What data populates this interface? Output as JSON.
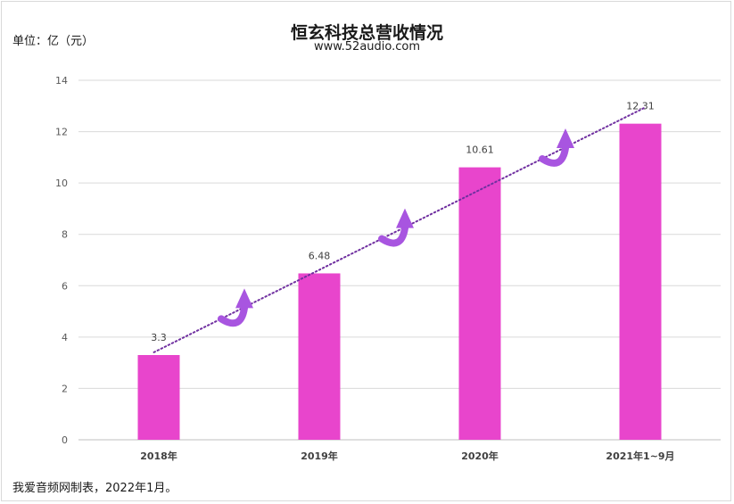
{
  "chart_data": {
    "type": "bar",
    "title": "恒玄科技总营收情况",
    "subtitle": "www.52audio.com",
    "unit_label": "单位：亿（元）",
    "footer": "我爱音频网制表，2022年1月。",
    "categories": [
      "2018年",
      "2019年",
      "2020年",
      "2021年1~9月"
    ],
    "values": [
      3.3,
      6.48,
      10.61,
      12.31
    ],
    "data_labels": [
      "3.3",
      "6.48",
      "10.61",
      "12.31"
    ],
    "ylim": [
      0,
      14
    ],
    "yticks": [
      0,
      2,
      4,
      6,
      8,
      10,
      12,
      14
    ],
    "grid": true,
    "trendline": "linear dotted",
    "bar_color": "#e845cc",
    "trend_color": "#7030a0",
    "arrow_color": "#a855e0"
  }
}
